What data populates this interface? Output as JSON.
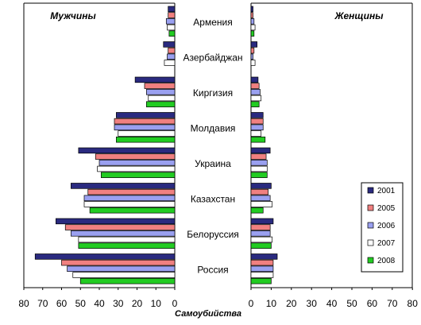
{
  "chart_data": {
    "type": "bar",
    "orientation": "horizontal",
    "layout": "population-pyramid",
    "categories": [
      "Армения",
      "Азербайджан",
      "Киргизия",
      "Молдавия",
      "Украина",
      "Казахстан",
      "Белоруссия",
      "Россия"
    ],
    "series_names": [
      "2001",
      "2005",
      "2006",
      "2007",
      "2008"
    ],
    "colors": {
      "2001": "#2a2a7f",
      "2005": "#f08080",
      "2006": "#9aa0f0",
      "2007": "#ffffff",
      "2008": "#22cc22"
    },
    "panels": [
      {
        "title": "Мужчины",
        "side": "left",
        "xlim": [
          0,
          80
        ],
        "ticks": [
          "0",
          "10",
          "20",
          "30",
          "40",
          "50",
          "60",
          "70",
          "80"
        ],
        "series": [
          {
            "name": "2001",
            "values": [
              3.5,
              6,
              21,
              31,
              51,
              55,
              63,
              74
            ]
          },
          {
            "name": "2005",
            "values": [
              3.5,
              3.5,
              16,
              32,
              42,
              46,
              58,
              60
            ]
          },
          {
            "name": "2006",
            "values": [
              4.5,
              4,
              15,
              32,
              40,
              48,
              55,
              57
            ]
          },
          {
            "name": "2007",
            "values": [
              4,
              5.5,
              14,
              30,
              41,
              48,
              51,
              54
            ]
          },
          {
            "name": "2008",
            "values": [
              3,
              0,
              15,
              31,
              39,
              45,
              51,
              50
            ]
          }
        ]
      },
      {
        "title": "Женщины",
        "side": "right",
        "xlim": [
          0,
          80
        ],
        "ticks": [
          "0",
          "10",
          "20",
          "30",
          "40",
          "50",
          "60",
          "70",
          "80"
        ],
        "series": [
          {
            "name": "2001",
            "values": [
              1,
              3,
              3.5,
              6,
              9.5,
              10,
              11,
              13
            ]
          },
          {
            "name": "2005",
            "values": [
              1,
              1.5,
              4,
              6,
              7.5,
              8.5,
              9.5,
              11
            ]
          },
          {
            "name": "2006",
            "values": [
              1.5,
              1,
              4.5,
              6,
              8,
              9.5,
              9.5,
              11
            ]
          },
          {
            "name": "2007",
            "values": [
              2,
              2,
              5,
              5,
              8,
              10.5,
              10.5,
              11
            ]
          },
          {
            "name": "2008",
            "values": [
              1.5,
              0,
              4,
              7,
              8,
              6,
              10,
              10
            ]
          }
        ]
      }
    ],
    "legend": {
      "position": "bottom-right",
      "entries": [
        "2001",
        "2005",
        "2006",
        "2007",
        "2008"
      ]
    },
    "xlabel": "Самоубийства",
    "grid": false
  }
}
